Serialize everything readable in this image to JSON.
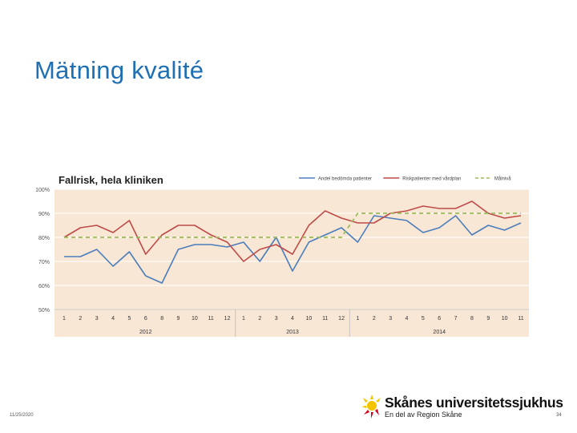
{
  "slide": {
    "title": "Mätning kvalité",
    "date": "11/25/2020",
    "page_number": "34",
    "logo_name": "Skånes universitetssjukhus",
    "logo_subtitle": "En del av Region Skåne"
  },
  "colors": {
    "title": "#1f6fb4",
    "plot_bg": "#f9e7d6",
    "series_blue": "#4a7ebb",
    "series_red": "#be4b48",
    "series_green": "#9bbb59",
    "logo_yellow": "#f5c400",
    "logo_red": "#d6001c"
  },
  "chart_data": {
    "type": "line",
    "title": "Fallrisk, hela kliniken",
    "xlabel": "",
    "ylabel": "",
    "ylim": [
      0.5,
      1.0
    ],
    "y_ticks": [
      "100%",
      "90%",
      "80%",
      "70%",
      "60%",
      "50%"
    ],
    "grid": true,
    "legend_position": "top-right",
    "categories": [
      "1",
      "2",
      "3",
      "4",
      "5",
      "6",
      "8",
      "9",
      "10",
      "11",
      "12",
      "1",
      "2",
      "3",
      "4",
      "10",
      "11",
      "12",
      "1",
      "2",
      "3",
      "4",
      "5",
      "6",
      "7",
      "8",
      "9",
      "10",
      "11"
    ],
    "year_groups": [
      {
        "label": "2012",
        "start": 0,
        "count": 11
      },
      {
        "label": "2013",
        "start": 11,
        "count": 7
      },
      {
        "label": "2014",
        "start": 18,
        "count": 11
      }
    ],
    "series": [
      {
        "name": "Andel bedömda patienter",
        "color": "#4a7ebb",
        "values": [
          0.72,
          0.72,
          0.75,
          0.68,
          0.74,
          0.64,
          0.61,
          0.75,
          0.77,
          0.77,
          0.76,
          0.78,
          0.7,
          0.8,
          0.66,
          0.78,
          0.81,
          0.84,
          0.78,
          0.89,
          0.88,
          0.87,
          0.82,
          0.84,
          0.89,
          0.81,
          0.85,
          0.83,
          0.86
        ]
      },
      {
        "name": "Riskpatienter med vårdplan",
        "color": "#be4b48",
        "values": [
          0.8,
          0.84,
          0.85,
          0.82,
          0.87,
          0.73,
          0.81,
          0.85,
          0.85,
          0.81,
          0.78,
          0.7,
          0.75,
          0.77,
          0.73,
          0.85,
          0.91,
          0.88,
          0.86,
          0.86,
          0.9,
          0.91,
          0.93,
          0.92,
          0.92,
          0.95,
          0.9,
          0.88,
          0.89
        ]
      },
      {
        "name": "Målnivå",
        "color": "#9bbb59",
        "dashed": true,
        "values": [
          0.8,
          0.8,
          0.8,
          0.8,
          0.8,
          0.8,
          0.8,
          0.8,
          0.8,
          0.8,
          0.8,
          0.8,
          0.8,
          0.8,
          0.8,
          0.8,
          0.8,
          0.8,
          0.9,
          0.9,
          0.9,
          0.9,
          0.9,
          0.9,
          0.9,
          0.9,
          0.9,
          0.9,
          0.9
        ]
      }
    ]
  }
}
